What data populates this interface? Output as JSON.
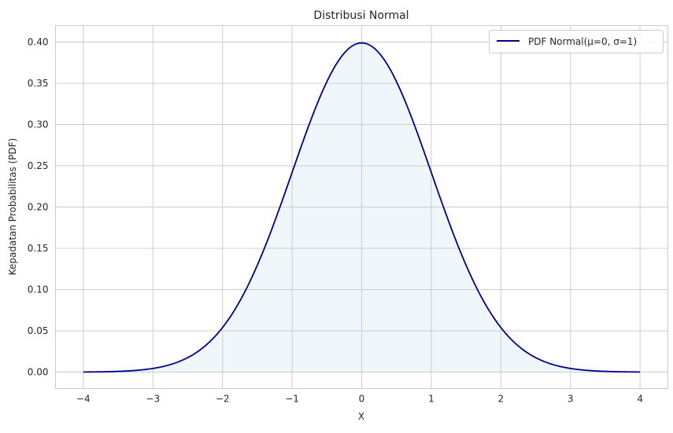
{
  "chart_data": {
    "type": "line",
    "title": "Distribusi Normal",
    "xlabel": "X",
    "ylabel": "Kepadatan Probabilitas (PDF)",
    "xlim": [
      -4.4,
      4.4
    ],
    "ylim": [
      -0.02,
      0.42
    ],
    "xticks": [
      -4,
      -3,
      -2,
      -1,
      0,
      1,
      2,
      3,
      4
    ],
    "xtick_labels": [
      "−4",
      "−3",
      "−2",
      "−1",
      "0",
      "1",
      "2",
      "3",
      "4"
    ],
    "yticks": [
      0.0,
      0.05,
      0.1,
      0.15,
      0.2,
      0.25,
      0.3,
      0.35,
      0.4
    ],
    "ytick_labels": [
      "0.00",
      "0.05",
      "0.10",
      "0.15",
      "0.20",
      "0.25",
      "0.30",
      "0.35",
      "0.40"
    ],
    "grid": true,
    "legend_position": "upper right",
    "series": [
      {
        "name": "PDF Normal(μ=0, σ=1)",
        "color": "#00008b",
        "fill_color": "#add8e6",
        "fill_opacity": 0.2,
        "mu": 0,
        "sigma": 1,
        "x": [
          -4,
          -3.5,
          -3,
          -2.5,
          -2,
          -1.5,
          -1,
          -0.5,
          0,
          0.5,
          1,
          1.5,
          2,
          2.5,
          3,
          3.5,
          4
        ],
        "y": [
          0.0001,
          0.0009,
          0.0044,
          0.0175,
          0.054,
          0.1295,
          0.242,
          0.3521,
          0.3989,
          0.3521,
          0.242,
          0.1295,
          0.054,
          0.0175,
          0.0044,
          0.0009,
          0.0001
        ]
      }
    ]
  },
  "legend": {
    "label": "PDF Normal(μ=0, σ=1)"
  }
}
